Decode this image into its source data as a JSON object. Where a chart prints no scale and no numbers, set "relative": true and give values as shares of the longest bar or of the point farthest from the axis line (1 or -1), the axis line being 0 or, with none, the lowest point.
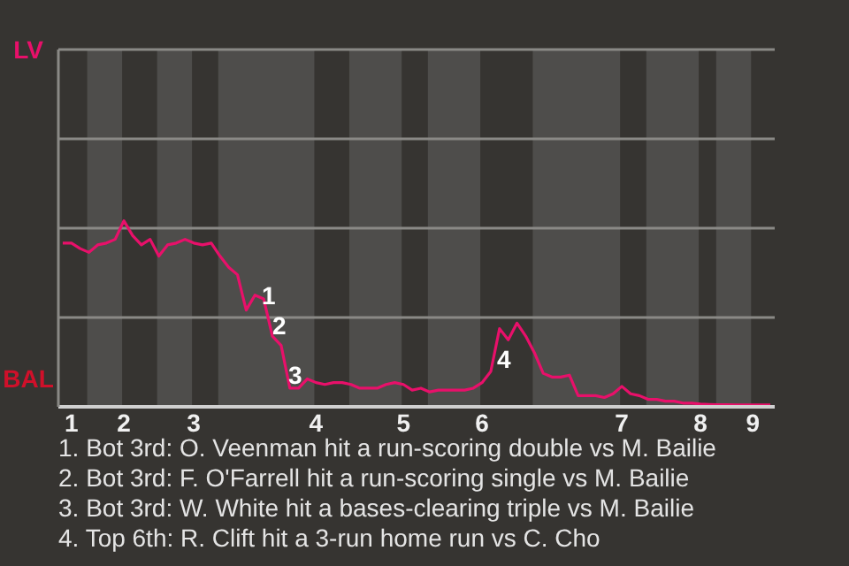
{
  "chart_data": {
    "type": "line",
    "categories": [
      null,
      "1",
      null,
      null,
      null,
      null,
      null,
      "2",
      null,
      null,
      null,
      null,
      null,
      null,
      null,
      "3",
      null,
      null,
      null,
      null,
      null,
      null,
      null,
      null,
      null,
      null,
      null,
      null,
      null,
      "4",
      null,
      null,
      null,
      null,
      null,
      null,
      null,
      null,
      null,
      "5",
      null,
      null,
      null,
      null,
      null,
      null,
      null,
      null,
      "6",
      null,
      null,
      null,
      null,
      null,
      null,
      null,
      null,
      null,
      null,
      null,
      null,
      null,
      null,
      null,
      "7",
      null,
      null,
      null,
      null,
      null,
      null,
      null,
      null,
      "8",
      null,
      null,
      null,
      null,
      null,
      "9",
      null,
      null
    ],
    "relative": true,
    "ref_lines": [
      {
        "axis": "y",
        "value": 0.48,
        "color": "#8a8986"
      },
      {
        "axis": "y",
        "value": 0.96,
        "color": "#8a8986"
      },
      {
        "axis": "y",
        "value": 1.44,
        "color": "#8a8986"
      },
      {
        "axis": "y",
        "value": 1.92,
        "color": "#8a8986"
      }
    ],
    "legend": false,
    "marker": "none",
    "line_style": "solid",
    "series": [
      {
        "color": "#e8106a",
        "values": [
          0.88,
          0.88,
          0.85,
          0.83,
          0.87,
          0.88,
          0.9,
          1,
          0.92,
          0.87,
          0.9,
          0.81,
          0.87,
          0.88,
          0.9,
          0.88,
          0.87,
          0.88,
          0.81,
          0.75,
          0.71,
          0.52,
          0.6,
          0.58,
          0.38,
          0.33,
          0.1,
          0.1,
          0.15,
          0.13,
          0.12,
          0.13,
          0.13,
          0.12,
          0.1,
          0.1,
          0.1,
          0.12,
          0.13,
          0.12,
          0.09,
          0.1,
          0.08,
          0.09,
          0.09,
          0.09,
          0.09,
          0.1,
          0.13,
          0.19,
          0.42,
          0.36,
          0.45,
          0.38,
          0.29,
          0.18,
          0.16,
          0.16,
          0.17,
          0.06,
          0.06,
          0.06,
          0.05,
          0.07,
          0.11,
          0.07,
          0.06,
          0.04,
          0.04,
          0.03,
          0.03,
          0.02,
          0.02,
          0.015,
          0.013,
          0.012,
          0.012,
          0.01,
          0.01,
          0.01,
          0.01,
          0.01
        ]
      }
    ],
    "annotations": [
      "LV",
      "BAL",
      "1",
      "2",
      "3",
      "4",
      "1. Bot 3rd: O. Veenman hit a run-scoring double vs M. Bailie",
      "2. Bot 3rd: F. O'Farrell hit a run-scoring single vs M. Bailie",
      "3. Bot 3rd: W. White hit a bases-clearing triple vs M. Bailie",
      "4. Top 6th: R. Clift hit a 3-run home run vs C. Cho"
    ]
  }
}
